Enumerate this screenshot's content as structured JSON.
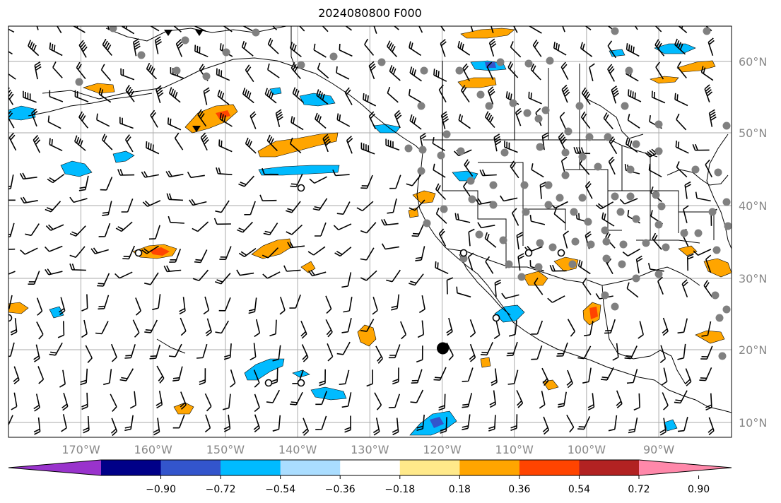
{
  "title": "2024080800 F000",
  "map": {
    "lon_range": [
      -180,
      -80
    ],
    "lat_range": [
      8,
      65
    ],
    "gridlines": "on",
    "lat_labels": [
      "60°N",
      "50°N",
      "40°N",
      "30°N",
      "20°N",
      "10°N"
    ],
    "lat_values": [
      60,
      50,
      40,
      30,
      20,
      10
    ],
    "lon_labels": [
      "170°W",
      "160°W",
      "150°W",
      "140°W",
      "130°W",
      "120°W",
      "110°W",
      "100°W",
      "90°W"
    ],
    "lon_values": [
      -170,
      -160,
      -150,
      -140,
      -130,
      -120,
      -110,
      -100,
      -90
    ],
    "label_color": "#888888",
    "gridline_color": "#aaaaaa",
    "coastline_color": "#000000"
  },
  "colorbar": {
    "levels": [
      "−0.90",
      "−0.72",
      "−0.54",
      "−0.36",
      "−0.18",
      "0.18",
      "0.36",
      "0.54",
      "0.72",
      "0.90"
    ],
    "colors": [
      "#9933cc",
      "#000088",
      "#3355cc",
      "#00bbff",
      "#aaddff",
      "#ffffff",
      "#ffe98a",
      "#ffa500",
      "#ff4400",
      "#b22222",
      "#ff88aa"
    ],
    "extend": "both"
  },
  "stations": {
    "filled_color": "#808080",
    "major_marker": {
      "lon": -119.9,
      "lat": 20.2
    }
  }
}
